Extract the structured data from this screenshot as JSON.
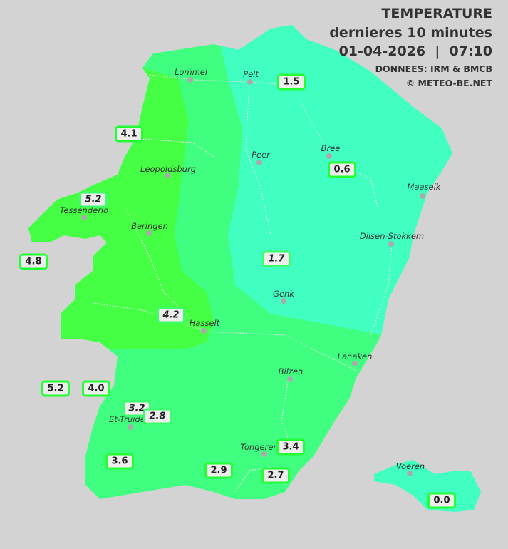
{
  "header": {
    "title": "TEMPERATURE",
    "subtitle": "dernieres 10 minutes",
    "datetime": "01-04-2026  |  07:10",
    "source": "DONNEES: IRM & BMCB",
    "copyright": "© METEO-BE.NET"
  },
  "colors": {
    "background": "#d3d3d3",
    "zone_warm": "#44ff44",
    "zone_mid": "#40ff80",
    "zone_cool": "#40ffc0",
    "label_border": "#22ff33"
  },
  "cities": [
    "Lommel",
    "Pelt",
    "Peer",
    "Bree",
    "Leopoldsburg",
    "Maaseik",
    "Tessenderlo",
    "Beringen",
    "Dilsen-Stokkem",
    "Genk",
    "Hasselt",
    "Lanaken",
    "Bilzen",
    "St-Truiden",
    "Tongeren",
    "Voeren"
  ],
  "readings": [
    "1.5",
    "4.1",
    "0.6",
    "5.2",
    "4.8",
    "1.7",
    "4.2",
    "5.2",
    "4.0",
    "3.2",
    "2.8",
    "3.6",
    "3.4",
    "2.9",
    "2.7",
    "0.0"
  ]
}
